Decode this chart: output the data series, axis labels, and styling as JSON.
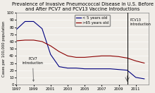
{
  "title": "Prevalence of Invasive Pneumococcal Disease in U.S. Before\nand After PCV7 and PCV13 Vaccine Introductions",
  "title_fontsize": 4.8,
  "ylabel": "Cases per 100,000 population",
  "ylabel_fontsize": 3.8,
  "xlim": [
    1997,
    2012.5
  ],
  "ylim": [
    0,
    100
  ],
  "yticks": [
    0,
    10,
    20,
    30,
    40,
    50,
    60,
    70,
    80,
    90,
    100
  ],
  "xticks": [
    1997,
    1999,
    2001,
    2003,
    2005,
    2007,
    2009,
    2011
  ],
  "tick_fontsize": 3.8,
  "under5_years": {
    "x": [
      1997,
      1998,
      1999,
      2000,
      2001,
      2002,
      2003,
      2004,
      2005,
      2006,
      2007,
      2008,
      2009,
      2010,
      2011,
      2012
    ],
    "y": [
      77,
      88,
      88,
      78,
      42,
      25,
      23,
      23,
      22,
      22,
      22,
      22,
      21,
      20,
      10,
      8
    ],
    "color": "#000080",
    "linewidth": 0.8,
    "label": "< 5 years old"
  },
  "over65_years": {
    "x": [
      1997,
      1998,
      1999,
      2000,
      2001,
      2002,
      2003,
      2004,
      2005,
      2006,
      2007,
      2008,
      2009,
      2010,
      2011,
      2012
    ],
    "y": [
      61,
      62,
      62,
      60,
      54,
      46,
      40,
      38,
      38,
      39,
      40,
      40,
      39,
      37,
      33,
      30
    ],
    "color": "#8B0000",
    "linewidth": 0.8,
    "label": ">65 years old"
  },
  "pcv7_x": 1999,
  "pcv7_label": "PCV7\nintroduction",
  "pcv13_x": 2010,
  "pcv13_label": "PCV13\nintroduction",
  "annotation_fontsize": 3.5,
  "legend_fontsize": 3.8,
  "bg_color": "#f0ede8"
}
